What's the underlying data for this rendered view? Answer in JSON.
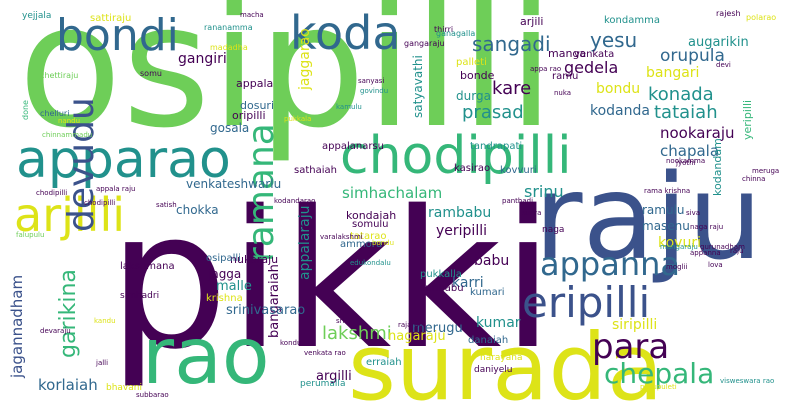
{
  "palette": {
    "purple": "#440154",
    "indigo": "#3b528b",
    "blue": "#31688e",
    "teal": "#21918c",
    "green": "#35b779",
    "lime": "#6ece58",
    "yellow": "#dde318"
  },
  "words": [
    {
      "text": "pikki",
      "color": "#440154"
    },
    {
      "text": "osipilli",
      "color": "#6ece58"
    },
    {
      "text": "raju",
      "color": "#3b528b"
    },
    {
      "text": "surada",
      "color": "#dde318"
    },
    {
      "text": "rao",
      "color": "#35b779"
    },
    {
      "text": "apparao",
      "color": "#21918c"
    },
    {
      "text": "chodipilli",
      "color": "#35b779"
    },
    {
      "text": "koda",
      "color": "#31688e"
    },
    {
      "text": "bondi",
      "color": "#31688e"
    },
    {
      "text": "arjilli",
      "color": "#dde318"
    },
    {
      "text": "devudu",
      "color": "#3b528b"
    },
    {
      "text": "ramana",
      "color": "#35b779"
    },
    {
      "text": "eripilli",
      "color": "#3b528b"
    },
    {
      "text": "appanna",
      "color": "#31688e"
    },
    {
      "text": "para",
      "color": "#440154"
    },
    {
      "text": "chepala",
      "color": "#35b779"
    },
    {
      "text": "garikina",
      "color": "#35b779"
    },
    {
      "text": "jagannadham",
      "color": "#3b528b"
    },
    {
      "text": "korlaiah",
      "color": "#31688e"
    },
    {
      "text": "lakshmi",
      "color": "#6ece58"
    },
    {
      "text": "sangadi",
      "color": "#31688e"
    },
    {
      "text": "yesu",
      "color": "#31688e"
    },
    {
      "text": "orupula",
      "color": "#31688e"
    },
    {
      "text": "augarikin",
      "color": "#21918c"
    },
    {
      "text": "bangari",
      "color": "#dde318"
    },
    {
      "text": "gedela",
      "color": "#440154"
    },
    {
      "text": "konada",
      "color": "#21918c"
    },
    {
      "text": "kare",
      "color": "#440154"
    },
    {
      "text": "bondu",
      "color": "#dde318"
    },
    {
      "text": "prasad",
      "color": "#21918c"
    },
    {
      "text": "tataiah",
      "color": "#21918c"
    },
    {
      "text": "kodanda",
      "color": "#31688e"
    },
    {
      "text": "nookaraju",
      "color": "#440154"
    },
    {
      "text": "chapala",
      "color": "#31688e"
    },
    {
      "text": "srinu",
      "color": "#21918c"
    },
    {
      "text": "simhachalam",
      "color": "#35b779"
    },
    {
      "text": "rambabu",
      "color": "#21918c"
    },
    {
      "text": "yeripilli",
      "color": "#440154"
    },
    {
      "text": "appalaraju",
      "color": "#21918c"
    },
    {
      "text": "jaggarao",
      "color": "#dde318"
    },
    {
      "text": "gangiri",
      "color": "#440154"
    },
    {
      "text": "gosala",
      "color": "#31688e"
    },
    {
      "text": "malle",
      "color": "#21918c"
    },
    {
      "text": "jagga",
      "color": "#440154"
    },
    {
      "text": "babu",
      "color": "#440154"
    },
    {
      "text": "karri",
      "color": "#31688e"
    },
    {
      "text": "kumar",
      "color": "#21918c"
    },
    {
      "text": "kovuri",
      "color": "#dde318"
    },
    {
      "text": "siripilli",
      "color": "#dde318"
    },
    {
      "text": "merugu",
      "color": "#31688e"
    },
    {
      "text": "nagaraju",
      "color": "#dde318"
    },
    {
      "text": "bangaraiah",
      "color": "#440154"
    },
    {
      "text": "srinivasarao",
      "color": "#31688e"
    },
    {
      "text": "argilli",
      "color": "#440154"
    },
    {
      "text": "chokka",
      "color": "#31688e"
    },
    {
      "text": "venkateshwarlu",
      "color": "#31688e"
    },
    {
      "text": "ramulu",
      "color": "#31688e"
    },
    {
      "text": "masenu",
      "color": "#31688e"
    },
    {
      "text": "kodandam",
      "color": "#21918c"
    },
    {
      "text": "yeripilli",
      "color": "#35b779"
    },
    {
      "text": "satyavathi",
      "color": "#21918c"
    },
    {
      "text": "durga",
      "color": "#21918c"
    },
    {
      "text": "bonde",
      "color": "#440154"
    },
    {
      "text": "dosuri",
      "color": "#31688e"
    },
    {
      "text": "oripilli",
      "color": "#440154"
    },
    {
      "text": "appala",
      "color": "#440154"
    },
    {
      "text": "kondamma",
      "color": "#21918c"
    },
    {
      "text": "arjili",
      "color": "#440154"
    },
    {
      "text": "manga",
      "color": "#440154"
    },
    {
      "text": "venkata",
      "color": "#440154"
    },
    {
      "text": "ramu",
      "color": "#440154"
    },
    {
      "text": "palleti",
      "color": "#dde318"
    },
    {
      "text": "sathaiah",
      "color": "#440154"
    },
    {
      "text": "kondaiah",
      "color": "#440154"
    },
    {
      "text": "somulu",
      "color": "#440154"
    },
    {
      "text": "tatarao",
      "color": "#dde318"
    },
    {
      "text": "nukaraju",
      "color": "#440154"
    },
    {
      "text": "kasirao",
      "color": "#440154"
    },
    {
      "text": "kovvuri",
      "color": "#31688e"
    },
    {
      "text": "naga",
      "color": "#440154"
    },
    {
      "text": "lakshmana",
      "color": "#440154"
    },
    {
      "text": "simhadri",
      "color": "#440154"
    },
    {
      "text": "krishna",
      "color": "#dde318"
    },
    {
      "text": "osipalli",
      "color": "#31688e"
    },
    {
      "text": "ammoru",
      "color": "#31688e"
    },
    {
      "text": "pukkalla",
      "color": "#21918c"
    },
    {
      "text": "suribabu",
      "color": "#440154"
    },
    {
      "text": "kumari",
      "color": "#31688e"
    },
    {
      "text": "erraiah",
      "color": "#21918c"
    },
    {
      "text": "danaiah",
      "color": "#31688e"
    },
    {
      "text": "appalanarsu",
      "color": "#440154"
    },
    {
      "text": "tandrapati",
      "color": "#21918c"
    },
    {
      "text": "perumalla",
      "color": "#21918c"
    },
    {
      "text": "daniyelu",
      "color": "#440154"
    },
    {
      "text": "narayana",
      "color": "#dde318"
    },
    {
      "text": "bhavani",
      "color": "#dde318"
    },
    {
      "text": "sattiraju",
      "color": "#dde318"
    },
    {
      "text": "rananamma",
      "color": "#21918c"
    },
    {
      "text": "madadha",
      "color": "#dde318"
    },
    {
      "text": "chettiraju",
      "color": "#6ece58"
    },
    {
      "text": "somu",
      "color": "#440154"
    },
    {
      "text": "chelluri",
      "color": "#31688e"
    },
    {
      "text": "done",
      "color": "#35b779"
    },
    {
      "text": "yejjala",
      "color": "#21918c"
    },
    {
      "text": "macha",
      "color": "#440154"
    },
    {
      "text": "rajesh",
      "color": "#440154"
    },
    {
      "text": "polarao",
      "color": "#dde318"
    },
    {
      "text": "thirri",
      "color": "#440154"
    },
    {
      "text": "gangaraju",
      "color": "#440154"
    },
    {
      "text": "ganagalla",
      "color": "#21918c"
    },
    {
      "text": "sanyasi",
      "color": "#440154"
    },
    {
      "text": "govindu",
      "color": "#21918c"
    },
    {
      "text": "kamulu",
      "color": "#21918c"
    },
    {
      "text": "pukkala",
      "color": "#dde318"
    },
    {
      "text": "chodipilli",
      "color": "#440154"
    },
    {
      "text": "appala raju",
      "color": "#440154"
    },
    {
      "text": "kodandarao",
      "color": "#440154"
    },
    {
      "text": "edukondalu",
      "color": "#21918c"
    },
    {
      "text": "varalakshmi",
      "color": "#440154"
    },
    {
      "text": "rajarao",
      "color": "#440154"
    },
    {
      "text": "panthadi",
      "color": "#440154"
    },
    {
      "text": "jyothi",
      "color": "#440154"
    },
    {
      "text": "appa rao",
      "color": "#440154"
    },
    {
      "text": "devi",
      "color": "#440154"
    },
    {
      "text": "nuka",
      "color": "#440154"
    },
    {
      "text": "surya",
      "color": "#440154"
    },
    {
      "text": "siva",
      "color": "#440154"
    },
    {
      "text": "visweswara rao",
      "color": "#21918c"
    },
    {
      "text": "pasupuleti",
      "color": "#dde318"
    },
    {
      "text": "chinna",
      "color": "#440154"
    },
    {
      "text": "rama krishna",
      "color": "#440154"
    },
    {
      "text": "nookamma",
      "color": "#440154"
    },
    {
      "text": "falupulu",
      "color": "#6ece58"
    },
    {
      "text": "chodipilli",
      "color": "#440154"
    },
    {
      "text": "bondu",
      "color": "#dde318"
    },
    {
      "text": "satish",
      "color": "#440154"
    },
    {
      "text": "jalli",
      "color": "#440154"
    },
    {
      "text": "sri",
      "color": "#440154"
    },
    {
      "text": "kandu",
      "color": "#dde318"
    },
    {
      "text": "chinnammadu",
      "color": "#6ece58"
    },
    {
      "text": "venkata rao",
      "color": "#440154"
    },
    {
      "text": "kondu",
      "color": "#440154"
    },
    {
      "text": "appanna",
      "color": "#440154"
    },
    {
      "text": "lova",
      "color": "#440154"
    },
    {
      "text": "raju",
      "color": "#440154"
    },
    {
      "text": "nandu",
      "color": "#dde318"
    },
    {
      "text": "subbarao",
      "color": "#440154"
    },
    {
      "text": "moglii",
      "color": "#440154"
    },
    {
      "text": "meruga",
      "color": "#440154"
    },
    {
      "text": "mangaraju",
      "color": "#21918c"
    },
    {
      "text": "gurunadham",
      "color": "#440154"
    },
    {
      "text": "naga raju",
      "color": "#440154"
    },
    {
      "text": "devaraju",
      "color": "#440154"
    }
  ]
}
